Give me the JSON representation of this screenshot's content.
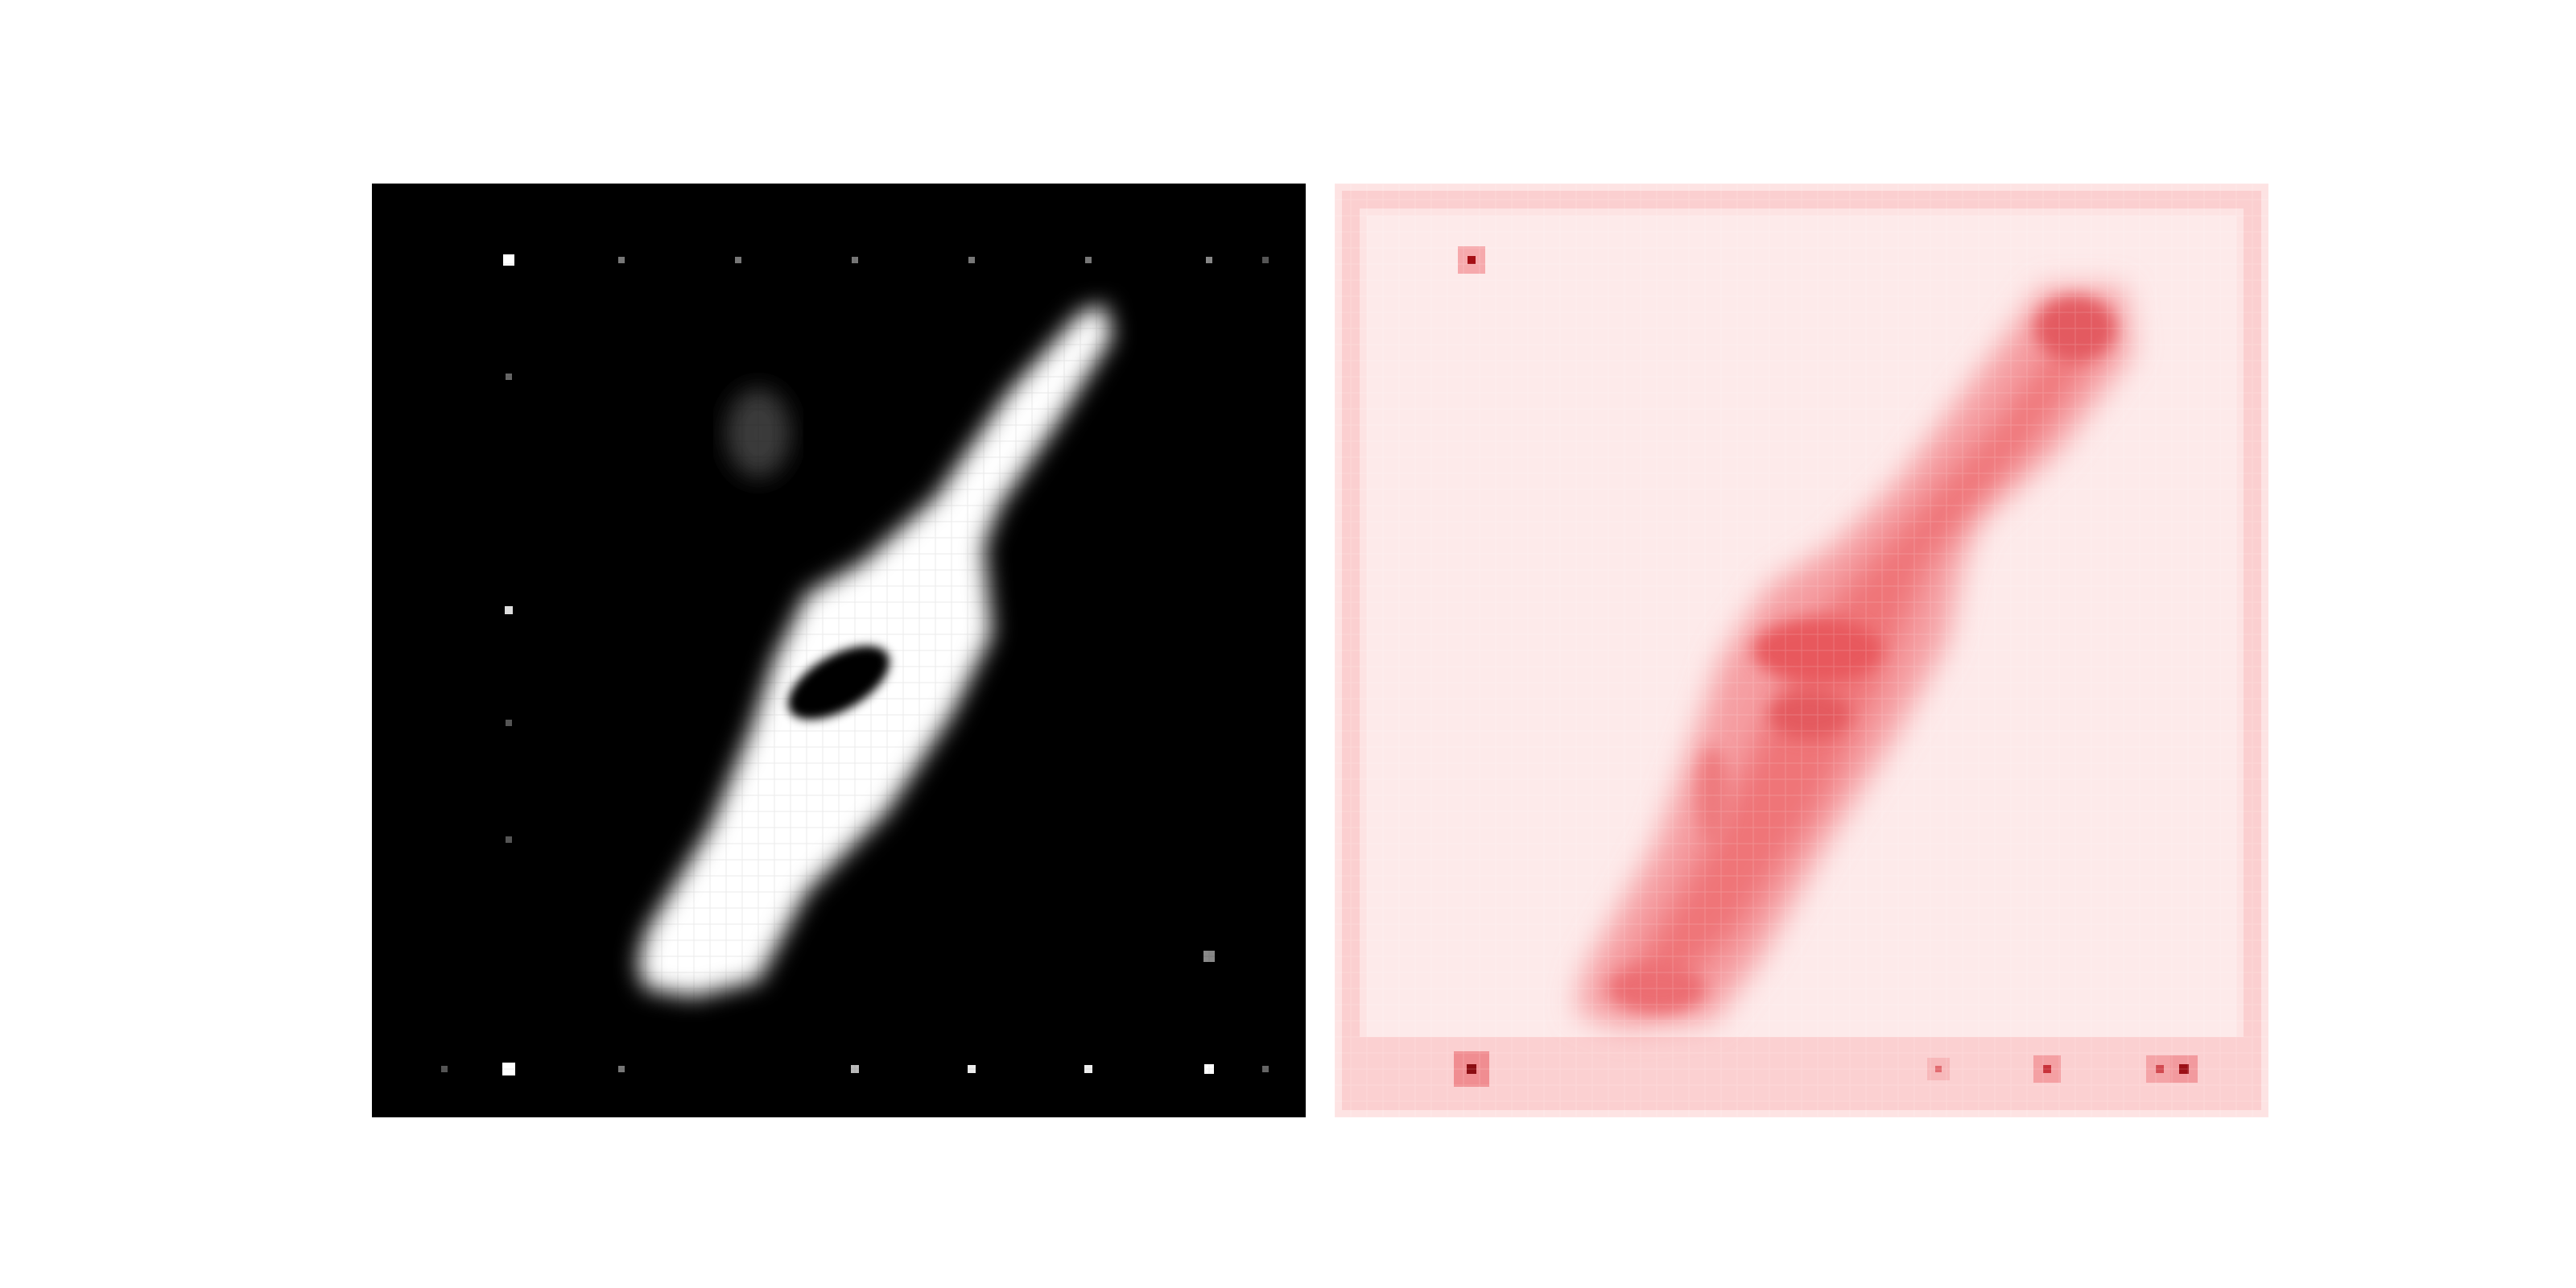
{
  "figure": {
    "panels": [
      {
        "id": "generated-digit",
        "colormap": "gray",
        "background": "#000000",
        "foreground": "#ffffff"
      },
      {
        "id": "saliency-map",
        "colormap": "reds",
        "background": "#ffffff",
        "foreground": "#a50f15"
      }
    ]
  }
}
